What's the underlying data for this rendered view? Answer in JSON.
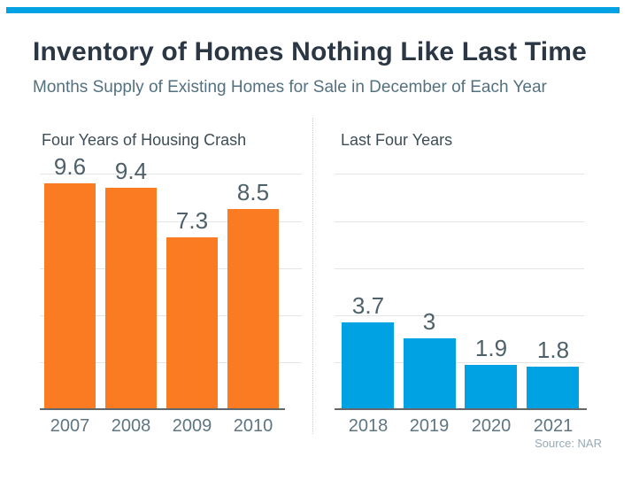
{
  "page": {
    "accent_bar_color": "#00a2e3",
    "background_color": "#ffffff"
  },
  "header": {
    "title": "Inventory of Homes Nothing Like Last Time",
    "subtitle": "Months Supply of Existing Homes for Sale in December of Each Year"
  },
  "source": {
    "label": "Source: NAR"
  },
  "chart_data": [
    {
      "type": "bar",
      "title": "Four Years of Housing Crash",
      "categories": [
        "2007",
        "2008",
        "2009",
        "2010"
      ],
      "values": [
        9.6,
        9.4,
        7.3,
        8.5
      ],
      "bar_color": "#fa7b21",
      "value_label_position": "above",
      "xlabel": "",
      "ylabel": "",
      "ylim": [
        0,
        10.8
      ],
      "gridline_values": [
        2,
        4,
        6,
        8,
        10
      ],
      "grid": "on",
      "legend": "none"
    },
    {
      "type": "bar",
      "title": "Last Four Years",
      "categories": [
        "2018",
        "2019",
        "2020",
        "2021"
      ],
      "values": [
        3.7,
        3,
        1.9,
        1.8
      ],
      "bar_color": "#00a2e4",
      "value_label_position": "above",
      "xlabel": "",
      "ylabel": "",
      "ylim": [
        0,
        10.8
      ],
      "gridline_values": [
        2,
        4,
        6,
        8,
        10
      ],
      "grid": "on",
      "legend": "none"
    }
  ]
}
